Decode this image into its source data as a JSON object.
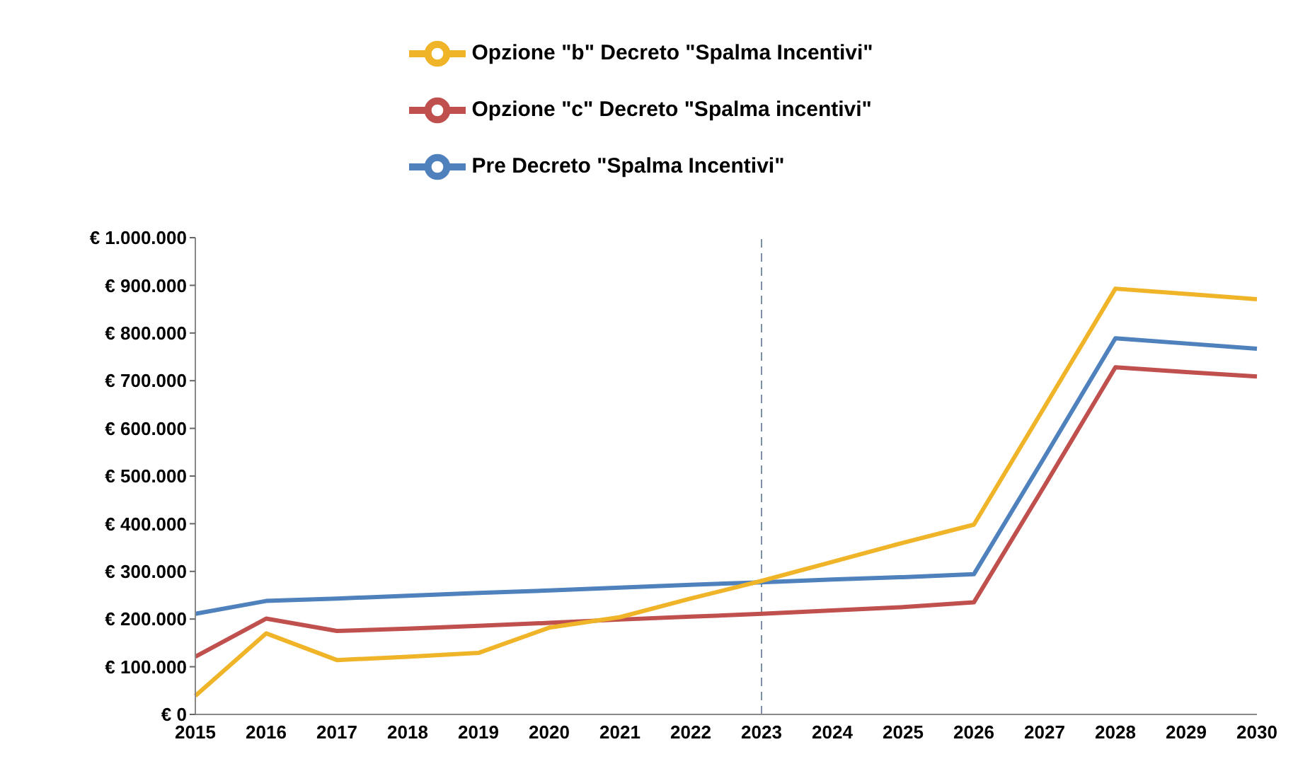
{
  "chart_data": {
    "type": "line",
    "categories": [
      "2015",
      "2016",
      "2017",
      "2018",
      "2019",
      "2020",
      "2021",
      "2022",
      "2023",
      "2024",
      "2025",
      "2026",
      "2027",
      "2028",
      "2029",
      "2030"
    ],
    "series": [
      {
        "name": "Pre Decreto \"Spalma Incentivi\"",
        "color": "#4f81bd",
        "values": [
          211000,
          238000,
          243000,
          249000,
          255000,
          260000,
          266000,
          272000,
          277000,
          283000,
          288000,
          294000,
          540000,
          789000,
          778000,
          767000
        ]
      },
      {
        "name": "Opzione \"c\" Decreto \"Spalma incentivi\"",
        "color": "#c0504d",
        "values": [
          121000,
          201000,
          175000,
          180000,
          186000,
          192000,
          199000,
          205000,
          211000,
          218000,
          225000,
          235000,
          480000,
          728000,
          718000,
          709000
        ]
      },
      {
        "name": "Opzione \"b\" Decreto \"Spalma Incentivi\"",
        "color": "#f0b429",
        "values": [
          39000,
          170000,
          114000,
          121000,
          129000,
          182000,
          204000,
          243000,
          280000,
          320000,
          360000,
          398000,
          645000,
          893000,
          882000,
          871000
        ]
      }
    ],
    "ylim": [
      0,
      1000000
    ],
    "yticks": [
      {
        "value": 0,
        "label": "€ 0"
      },
      {
        "value": 100000,
        "label": "€ 100.000"
      },
      {
        "value": 200000,
        "label": "€ 200.000"
      },
      {
        "value": 300000,
        "label": "€ 300.000"
      },
      {
        "value": 400000,
        "label": "€ 400.000"
      },
      {
        "value": 500000,
        "label": "€ 500.000"
      },
      {
        "value": 600000,
        "label": "€ 600.000"
      },
      {
        "value": 700000,
        "label": "€ 700.000"
      },
      {
        "value": 800000,
        "label": "€ 800.000"
      },
      {
        "value": 900000,
        "label": "€ 900.000"
      },
      {
        "value": 1000000,
        "label": "€ 1.000.000"
      }
    ],
    "ref_lines": [
      {
        "axis": "x",
        "value": "2023",
        "color": "#7f8fa6",
        "line_style": "dashed"
      }
    ],
    "grid": false,
    "legend": "top",
    "marker": "none",
    "line_style": "solid"
  }
}
